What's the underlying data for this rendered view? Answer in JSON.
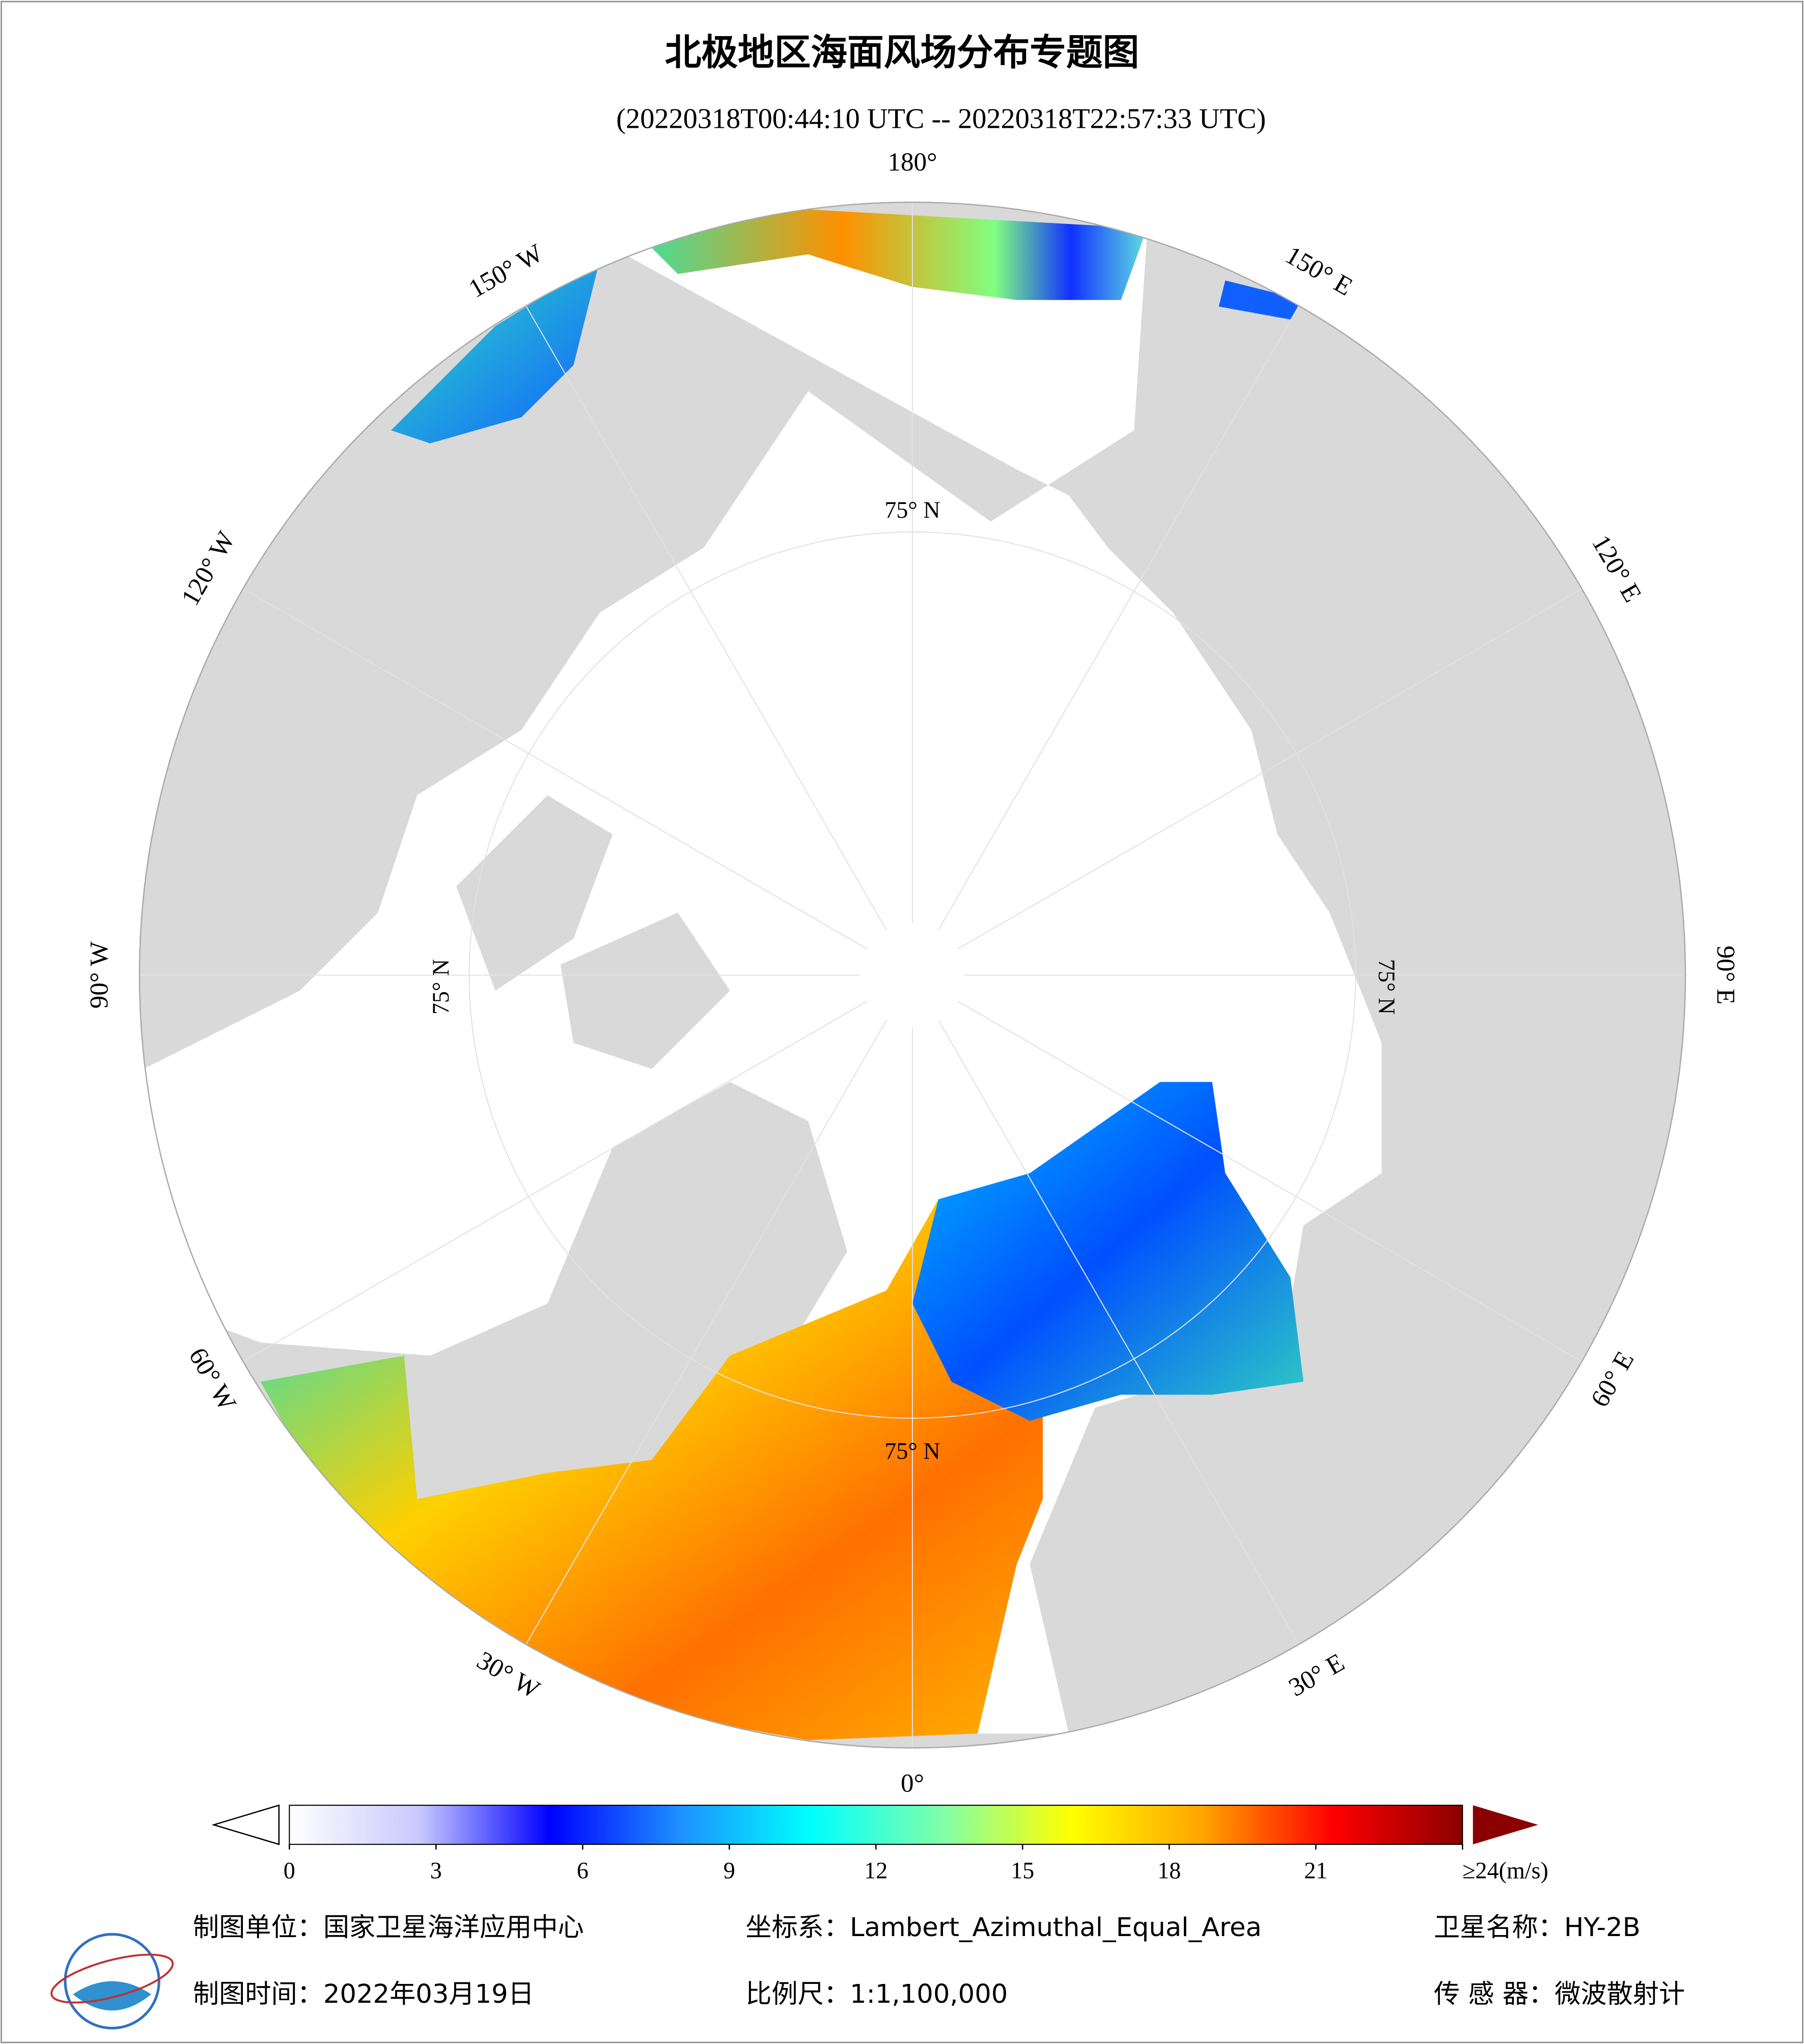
{
  "header": {
    "title": "北极地区海面风场分布专题图",
    "subtitle": "(20220318T00:44:10 UTC -- 20220318T22:57:33 UTC)"
  },
  "map": {
    "lon_labels": [
      "180°",
      "150° E",
      "120° E",
      "90° E",
      "60° E",
      "30° E",
      "0°",
      "30° W",
      "60° W",
      "90° W",
      "120° W",
      "150° W"
    ],
    "lat_label": "75° N"
  },
  "colorbar": {
    "ticks": [
      0,
      3,
      6,
      9,
      12,
      15,
      18,
      21,
      {
        "value": 24,
        "label": "≥24(m/s)"
      }
    ],
    "lim": [
      0,
      24
    ],
    "colors": [
      "#ffffff",
      "#c8c8ff",
      "#0000ff",
      "#1e90ff",
      "#00ffff",
      "#7fffaa",
      "#ffff00",
      "#ffa500",
      "#ff0000",
      "#8b0000"
    ]
  },
  "footer": {
    "org": "制图单位：国家卫星海洋应用中心",
    "crs": "坐标系：Lambert_Azimuthal_Equal_Area",
    "satellite": "卫星名称：HY-2B",
    "date": "制图时间：2022年03月19日",
    "scale": "比例尺：1:1,100,000",
    "sensor": "传 感 器：微波散射计"
  }
}
